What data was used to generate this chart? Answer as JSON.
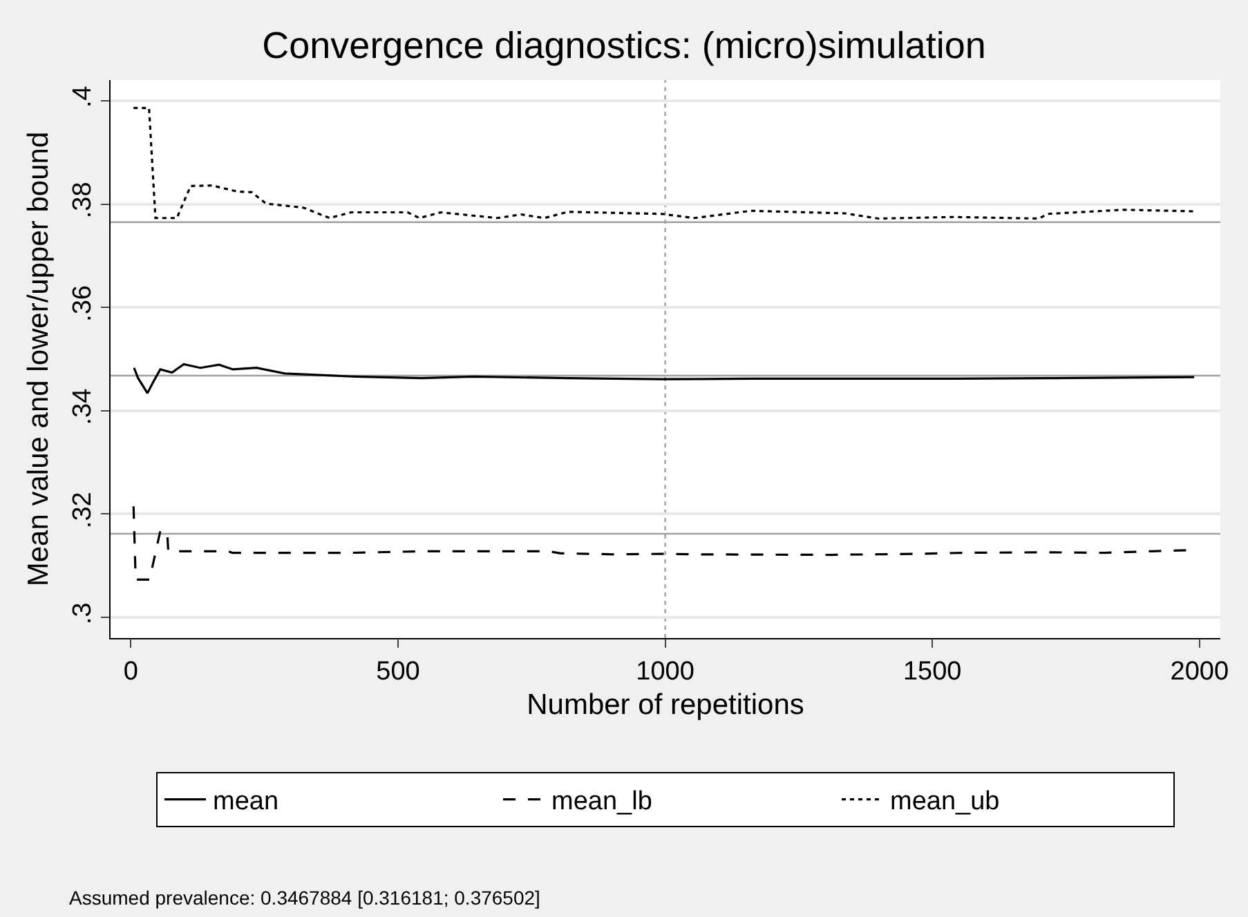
{
  "chart_data": {
    "type": "line",
    "title": "Convergence diagnostics: (micro)simulation",
    "xlabel": "Number of repetitions",
    "ylabel": "Mean value and lower/upper bound",
    "series": [
      {
        "name": "mean",
        "color": "#000000",
        "line_style": "solid",
        "x": [
          6,
          13,
          31,
          42,
          55,
          77,
          99,
          130,
          165,
          191,
          235,
          288,
          376,
          420,
          544,
          641,
          818,
          994,
          1160,
          1337,
          1540,
          1716,
          1858,
          1990
        ],
        "values": [
          0.3483,
          0.3464,
          0.3434,
          0.3456,
          0.348,
          0.3474,
          0.349,
          0.3483,
          0.3489,
          0.348,
          0.3483,
          0.3472,
          0.3468,
          0.3466,
          0.3463,
          0.3466,
          0.3463,
          0.3461,
          0.3462,
          0.3462,
          0.3462,
          0.3463,
          0.3464,
          0.3465
        ]
      },
      {
        "name": "mean_lb",
        "color": "#000000",
        "line_style": "dashed",
        "x": [
          5,
          9,
          35,
          55,
          68,
          70,
          182,
          190,
          412,
          553,
          782,
          804,
          905,
          994,
          1055,
          1311,
          1470,
          1558,
          1716,
          1822,
          1910,
          1981
        ],
        "values": [
          0.3215,
          0.3073,
          0.3073,
          0.3167,
          0.3165,
          0.3128,
          0.3128,
          0.3125,
          0.3125,
          0.3128,
          0.3128,
          0.3124,
          0.3122,
          0.3123,
          0.3122,
          0.3121,
          0.3123,
          0.3125,
          0.3126,
          0.3125,
          0.3128,
          0.313
        ]
      },
      {
        "name": "mean_ub",
        "color": "#000000",
        "line_style": "dotted",
        "x": [
          5,
          34,
          46,
          86,
          112,
          152,
          200,
          226,
          253,
          323,
          372,
          412,
          518,
          540,
          580,
          686,
          730,
          774,
          818,
          994,
          1055,
          1160,
          1337,
          1399,
          1540,
          1699,
          1716,
          1858,
          1990
        ],
        "values": [
          0.3986,
          0.3986,
          0.3773,
          0.3773,
          0.3835,
          0.3836,
          0.3824,
          0.3823,
          0.3801,
          0.3793,
          0.3773,
          0.3784,
          0.3784,
          0.3773,
          0.3784,
          0.3773,
          0.378,
          0.3773,
          0.3785,
          0.3781,
          0.3773,
          0.3787,
          0.3782,
          0.3772,
          0.3775,
          0.3772,
          0.3781,
          0.3789,
          0.3786
        ]
      }
    ],
    "xlim": [
      -38,
      2039
    ],
    "xticks": [
      0,
      500,
      1000,
      1500,
      2000
    ],
    "ylim": [
      0.296,
      0.404
    ],
    "yticks": [
      {
        "value": 0.3,
        "label": ".3"
      },
      {
        "value": 0.32,
        "label": ".32"
      },
      {
        "value": 0.34,
        "label": ".34"
      },
      {
        "value": 0.36,
        "label": ".36"
      },
      {
        "value": 0.38,
        "label": ".38"
      },
      {
        "value": 0.4,
        "label": ".4"
      }
    ],
    "ref_lines": [
      {
        "axis": "y",
        "value": 0.376502,
        "color": "#a0a0a0",
        "line_style": "solid"
      },
      {
        "axis": "y",
        "value": 0.3467884,
        "color": "#a0a0a0",
        "line_style": "solid"
      },
      {
        "axis": "y",
        "value": 0.316181,
        "color": "#a0a0a0",
        "line_style": "solid"
      },
      {
        "axis": "x",
        "value": 1000,
        "color": "#a0a0a0",
        "line_style": "dotted"
      }
    ],
    "annotations": [
      "Assumed prevalence: 0.3467884 [0.316181; 0.376502]"
    ],
    "grid": "y",
    "legend": "bottom",
    "marker": "none"
  }
}
